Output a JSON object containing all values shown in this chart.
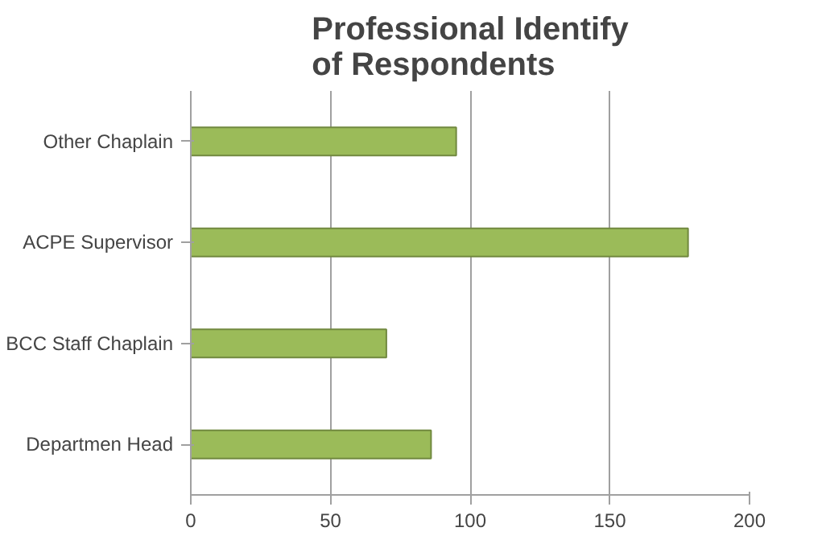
{
  "chart_data": {
    "type": "bar",
    "orientation": "horizontal",
    "title": "Professional Identify of Respondents",
    "categories": [
      "Other Chaplain",
      "ACPE Supervisor",
      "BCC Staff Chaplain",
      "Departmen Head"
    ],
    "values": [
      95,
      178,
      70,
      86
    ],
    "color": "#9bbb59",
    "xlim": [
      0,
      200
    ],
    "xticks": [
      0,
      50,
      100,
      150,
      200
    ],
    "grid": "x"
  }
}
